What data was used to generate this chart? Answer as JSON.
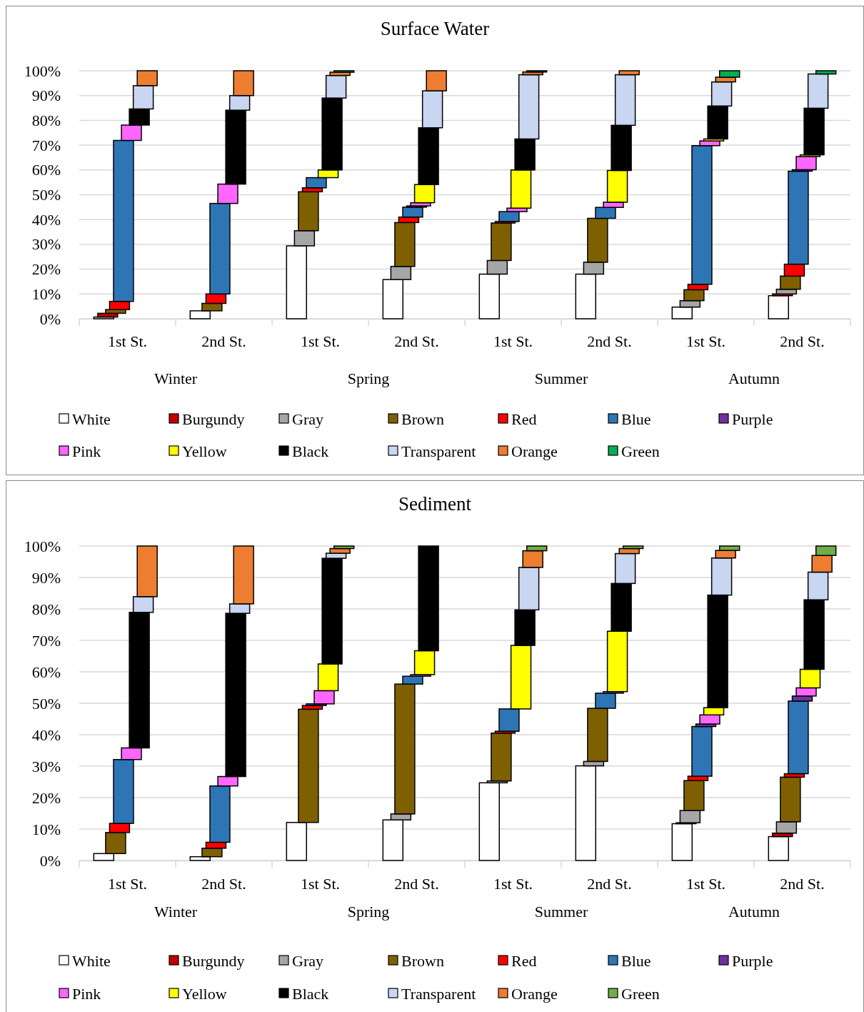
{
  "chart_data": [
    {
      "type": "bar",
      "title": "Surface Water",
      "stacked": true,
      "grid": "y",
      "legend": "bottom",
      "ylim": [
        0,
        100
      ],
      "yticks": [
        {
          "value": 0,
          "label": "0%"
        },
        {
          "value": 10,
          "label": "10%"
        },
        {
          "value": 20,
          "label": "20%"
        },
        {
          "value": 30,
          "label": "30%"
        },
        {
          "value": 40,
          "label": "40%"
        },
        {
          "value": 50,
          "label": "50%"
        },
        {
          "value": 60,
          "label": "60%"
        },
        {
          "value": 70,
          "label": "70%"
        },
        {
          "value": 80,
          "label": "80%"
        },
        {
          "value": 90,
          "label": "90%"
        },
        {
          "value": 100,
          "label": "100%"
        }
      ],
      "categories": [
        "1st St.",
        "2nd St.",
        "1st St.",
        "2nd St.",
        "1st St.",
        "2nd St.",
        "1st St.",
        "2nd St."
      ],
      "annotations": [
        "Winter",
        "Spring",
        "Summer",
        "Autumn"
      ],
      "series": [
        {
          "name": "White",
          "color": "#ffffff",
          "values": [
            0.7,
            3.2,
            29.4,
            15.8,
            18.0,
            18.0,
            4.7,
            9.3
          ]
        },
        {
          "name": "Burgundy",
          "color": "#c00000",
          "values": [
            1.5,
            null,
            null,
            null,
            null,
            null,
            null,
            0.7
          ]
        },
        {
          "name": "Gray",
          "color": "#a6a6a6",
          "values": [
            null,
            null,
            6.1,
            5.3,
            5.5,
            4.8,
            2.6,
            1.9
          ]
        },
        {
          "name": "Brown",
          "color": "#7f6000",
          "values": [
            1.5,
            3.0,
            15.7,
            17.7,
            15.1,
            17.7,
            4.4,
            5.3
          ]
        },
        {
          "name": "Red",
          "color": "#ff0000",
          "values": [
            3.3,
            3.8,
            1.6,
            2.2,
            0.6,
            null,
            2.2,
            4.8
          ]
        },
        {
          "name": "Blue",
          "color": "#2e75b6",
          "values": [
            64.9,
            36.5,
            4.1,
            4.0,
            4.0,
            4.4,
            55.9,
            37.5
          ]
        },
        {
          "name": "Purple",
          "color": "#7030a0",
          "values": [
            null,
            null,
            null,
            0.5,
            null,
            null,
            null,
            0.6
          ]
        },
        {
          "name": "Pink",
          "color": "#ff66ff",
          "values": [
            6.2,
            7.8,
            null,
            1.3,
            1.4,
            2.1,
            1.9,
            5.3
          ]
        },
        {
          "name": "Yellow",
          "color": "#ffff00",
          "values": [
            null,
            null,
            3.1,
            7.3,
            15.4,
            12.8,
            0.8,
            0.7
          ]
        },
        {
          "name": "Black",
          "color": "#000000",
          "values": [
            6.5,
            29.8,
            29.0,
            22.9,
            12.5,
            18.2,
            13.3,
            18.8
          ]
        },
        {
          "name": "Transparent",
          "color": "#c9d6f2",
          "values": [
            9.4,
            5.9,
            9.1,
            14.9,
            25.9,
            20.4,
            9.7,
            13.8
          ]
        },
        {
          "name": "Orange",
          "color": "#ed7d31",
          "values": [
            6.0,
            10.0,
            1.3,
            8.1,
            1.1,
            1.6,
            1.9,
            null
          ]
        },
        {
          "name": "Green",
          "color": "#00b050",
          "values": [
            null,
            null,
            0.6,
            null,
            0.5,
            null,
            2.6,
            1.3
          ]
        }
      ]
    },
    {
      "type": "bar",
      "title": "Sediment",
      "stacked": true,
      "grid": "y",
      "legend": "bottom",
      "ylim": [
        0,
        100
      ],
      "yticks": [
        {
          "value": 0,
          "label": "0%"
        },
        {
          "value": 10,
          "label": "10%"
        },
        {
          "value": 20,
          "label": "20%"
        },
        {
          "value": 30,
          "label": "30%"
        },
        {
          "value": 40,
          "label": "40%"
        },
        {
          "value": 50,
          "label": "50%"
        },
        {
          "value": 60,
          "label": "60%"
        },
        {
          "value": 70,
          "label": "70%"
        },
        {
          "value": 80,
          "label": "80%"
        },
        {
          "value": 90,
          "label": "90%"
        },
        {
          "value": 100,
          "label": "100%"
        }
      ],
      "categories": [
        "1st St.",
        "2nd St.",
        "1st St.",
        "2nd St.",
        "1st St.",
        "2nd St.",
        "1st St.",
        "2nd St."
      ],
      "annotations": [
        "Winter",
        "Spring",
        "Summer",
        "Autumn"
      ],
      "series": [
        {
          "name": "White",
          "color": "#ffffff",
          "values": [
            2.2,
            1.2,
            12.1,
            12.9,
            24.7,
            30.1,
            11.7,
            7.6
          ]
        },
        {
          "name": "Burgundy",
          "color": "#c00000",
          "values": [
            null,
            null,
            null,
            null,
            null,
            null,
            0.3,
            1.1
          ]
        },
        {
          "name": "Gray",
          "color": "#a6a6a6",
          "values": [
            null,
            null,
            null,
            1.9,
            0.6,
            1.4,
            3.9,
            3.6
          ]
        },
        {
          "name": "Brown",
          "color": "#7f6000",
          "values": [
            6.7,
            2.7,
            36.0,
            41.3,
            15.2,
            16.9,
            9.5,
            14.2
          ]
        },
        {
          "name": "Red",
          "color": "#ff0000",
          "values": [
            2.9,
            1.9,
            1.2,
            null,
            0.6,
            null,
            1.4,
            1.1
          ]
        },
        {
          "name": "Blue",
          "color": "#2e75b6",
          "values": [
            20.3,
            17.9,
            0.5,
            2.5,
            7.1,
            4.8,
            15.8,
            23.1
          ]
        },
        {
          "name": "Purple",
          "color": "#7030a0",
          "values": [
            null,
            null,
            null,
            null,
            null,
            null,
            0.8,
            1.6
          ]
        },
        {
          "name": "Pink",
          "color": "#ff66ff",
          "values": [
            3.7,
            3.0,
            4.2,
            0.5,
            null,
            0.5,
            2.9,
            2.6
          ]
        },
        {
          "name": "Yellow",
          "color": "#ffff00",
          "values": [
            null,
            null,
            8.5,
            7.6,
            20.2,
            19.2,
            2.3,
            5.9
          ]
        },
        {
          "name": "Black",
          "color": "#000000",
          "values": [
            43.1,
            51.9,
            33.6,
            33.3,
            11.3,
            15.2,
            35.8,
            22.1
          ]
        },
        {
          "name": "Transparent",
          "color": "#c9d6f2",
          "values": [
            5.0,
            3.0,
            1.6,
            null,
            13.5,
            9.5,
            11.8,
            8.8
          ]
        },
        {
          "name": "Orange",
          "color": "#ed7d31",
          "values": [
            16.1,
            18.4,
            1.5,
            null,
            5.3,
            1.6,
            2.4,
            5.3
          ]
        },
        {
          "name": "Green",
          "color": "#70ad47",
          "values": [
            null,
            null,
            0.8,
            null,
            1.5,
            0.8,
            1.4,
            3.0
          ]
        }
      ]
    }
  ]
}
